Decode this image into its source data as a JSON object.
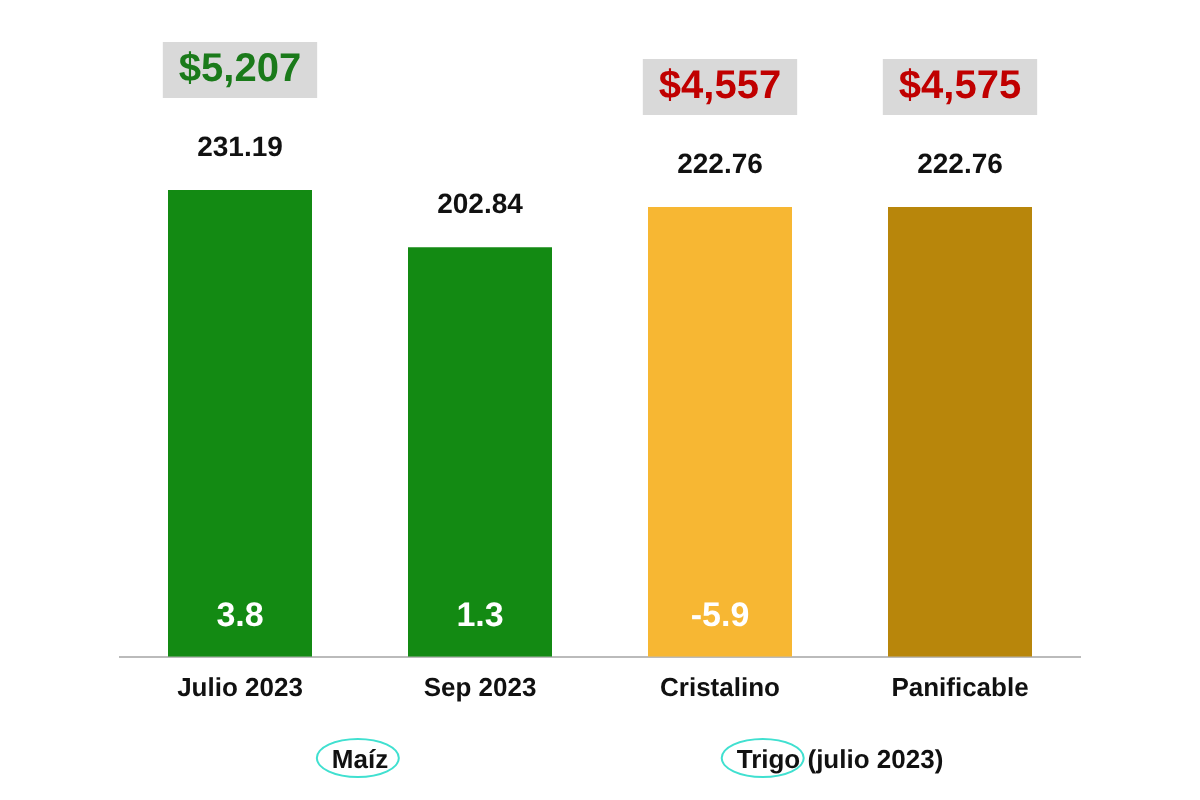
{
  "chart_data": {
    "type": "bar",
    "categories": [
      "Julio 2023",
      "Sep 2023",
      "Cristalino",
      "Panificable"
    ],
    "values": [
      231.19,
      202.84,
      222.76,
      222.76
    ],
    "colors": [
      "#138a13",
      "#138a13",
      "#f7b733",
      "#b8860b"
    ],
    "data_labels": true,
    "annotations": [
      "$5,207",
      "$4,557",
      "$4,575",
      "3.8",
      "1.3",
      "-5.9",
      "Maíz",
      "Trigo (julio 2023)"
    ],
    "grid": false,
    "legend": false
  }
}
